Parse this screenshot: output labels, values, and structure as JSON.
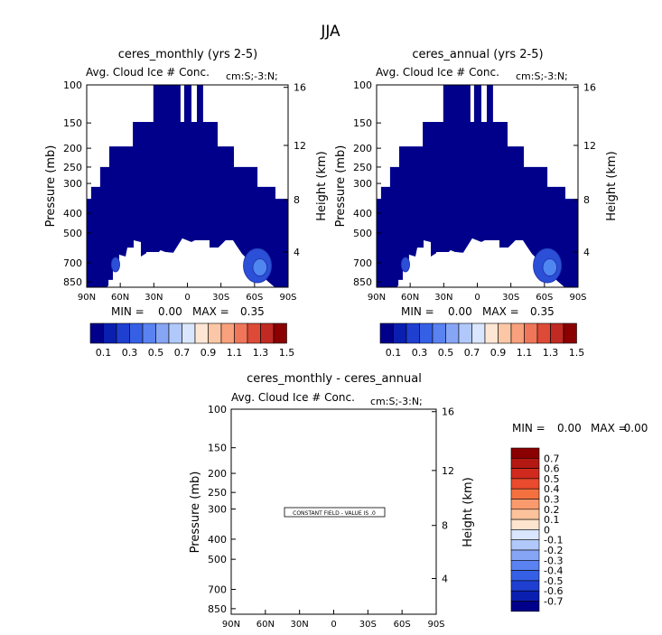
{
  "page": {
    "title": "JJA"
  },
  "chart_data": [
    {
      "id": "panel-1",
      "type": "heatmap",
      "title": "ceres_monthly (yrs 2-5)",
      "subtitle_left": "Avg. Cloud Ice # Conc.",
      "subtitle_right": "cm:S;-3:N;",
      "ylabel": "Pressure (mb)",
      "ylabel_right": "Height (km)",
      "x_ticks": [
        "90N",
        "60N",
        "30N",
        "0",
        "30S",
        "60S",
        "90S"
      ],
      "y_ticks": [
        "100",
        "150",
        "200",
        "250",
        "300",
        "400",
        "500",
        "700",
        "850"
      ],
      "y_ticks_right": [
        "16",
        "12",
        "8",
        "4"
      ],
      "min_label": "MIN =",
      "min_value": "0.00",
      "max_label": "MAX =",
      "max_value": "0.35",
      "colorbar_labels": [
        "0.1",
        "0.3",
        "0.5",
        "0.7",
        "0.9",
        "1.1",
        "1.3",
        "1.5"
      ]
    },
    {
      "id": "panel-2",
      "type": "heatmap",
      "title": "ceres_annual (yrs 2-5)",
      "subtitle_left": "Avg. Cloud Ice # Conc.",
      "subtitle_right": "cm:S;-3:N;",
      "ylabel": "Pressure (mb)",
      "ylabel_right": "Height (km)",
      "x_ticks": [
        "90N",
        "60N",
        "30N",
        "0",
        "30S",
        "60S",
        "90S"
      ],
      "y_ticks": [
        "100",
        "150",
        "200",
        "250",
        "300",
        "400",
        "500",
        "700",
        "850"
      ],
      "y_ticks_right": [
        "16",
        "12",
        "8",
        "4"
      ],
      "min_label": "MIN =",
      "min_value": "0.00",
      "max_label": "MAX =",
      "max_value": "0.35",
      "colorbar_labels": [
        "0.1",
        "0.3",
        "0.5",
        "0.7",
        "0.9",
        "1.1",
        "1.3",
        "1.5"
      ]
    },
    {
      "id": "panel-3",
      "type": "heatmap",
      "title": "ceres_monthly - ceres_annual",
      "subtitle_left": "Avg. Cloud Ice # Conc.",
      "subtitle_right": "cm:S;-3:N;",
      "ylabel": "Pressure (mb)",
      "ylabel_right": "Height (km)",
      "x_ticks": [
        "90N",
        "60N",
        "30N",
        "0",
        "30S",
        "60S",
        "90S"
      ],
      "y_ticks": [
        "100",
        "150",
        "200",
        "250",
        "300",
        "400",
        "500",
        "700",
        "850"
      ],
      "y_ticks_right": [
        "16",
        "12",
        "8",
        "4"
      ],
      "min_label": "MIN =",
      "min_value": "0.00",
      "max_label": "MAX =",
      "max_value": "0.00",
      "annotation": "CONSTANT FIELD - VALUE IS .0",
      "colorbar_labels": [
        "0.7",
        "0.6",
        "0.5",
        "0.4",
        "0.3",
        "0.2",
        "0.1",
        "0",
        "-0.1",
        "-0.2",
        "-0.3",
        "-0.4",
        "-0.5",
        "-0.6",
        "-0.7"
      ]
    }
  ],
  "colors": {
    "field_fill": "#00008b",
    "contour_light": "#2b4fd6",
    "contour_inner": "#4f86f0",
    "colorbar_horizontal": [
      "#00008b",
      "#0a1fb0",
      "#1f3fd1",
      "#3560e6",
      "#5a82f0",
      "#86a6f5",
      "#b1c8fa",
      "#d9e6fd",
      "#fde6d3",
      "#fcc7a6",
      "#f9a07c",
      "#f0765a",
      "#dd4a38",
      "#c02a22",
      "#8b0000"
    ],
    "colorbar_vertical": [
      "#8b0000",
      "#b31812",
      "#d02a1e",
      "#ea4a2e",
      "#f5703f",
      "#f99a6d",
      "#fbc29b",
      "#fde4cf",
      "#d9e6fd",
      "#b1c8fa",
      "#86a6f5",
      "#5a82f0",
      "#3560e6",
      "#1f3fd1",
      "#0a1fb0",
      "#00008b"
    ]
  }
}
